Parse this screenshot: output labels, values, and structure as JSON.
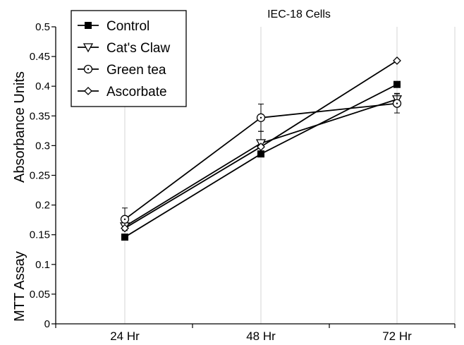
{
  "chart_data": {
    "type": "line",
    "title": "IEC-18 Cells",
    "ylabel_line1": "MTT Assay",
    "ylabel_line2": "Absorbance Units",
    "xlabel": "",
    "categories": [
      "24 Hr",
      "48 Hr",
      "72 Hr"
    ],
    "ylim": [
      0,
      0.5
    ],
    "yticks": [
      0,
      0.05,
      0.1,
      0.15,
      0.2,
      0.25,
      0.3,
      0.35,
      0.4,
      0.45,
      0.5
    ],
    "ytick_labels": [
      "0",
      "0.05",
      "0.1",
      "0.15",
      "0.2",
      "0.25",
      "0.3",
      "0.35",
      "0.4",
      "0.45",
      "0.5"
    ],
    "grid": {
      "vertical": true,
      "horizontal": false
    },
    "legend_position": "top-left",
    "line_color": "#000000",
    "series": [
      {
        "name": "Control",
        "marker": "filled-square",
        "values": [
          0.146,
          0.286,
          0.403
        ],
        "error": [
          0,
          0,
          0
        ]
      },
      {
        "name": "Cat's Claw",
        "marker": "open-triangle-down",
        "values": [
          0.164,
          0.304,
          0.378
        ],
        "error": [
          0,
          0.02,
          0.01
        ]
      },
      {
        "name": "Green tea",
        "marker": "open-circle-dot",
        "values": [
          0.176,
          0.347,
          0.371
        ],
        "error": [
          0.019,
          0.023,
          0.016
        ]
      },
      {
        "name": "Ascorbate",
        "marker": "open-diamond",
        "values": [
          0.161,
          0.298,
          0.443
        ],
        "error": [
          0,
          0,
          0
        ]
      }
    ]
  }
}
